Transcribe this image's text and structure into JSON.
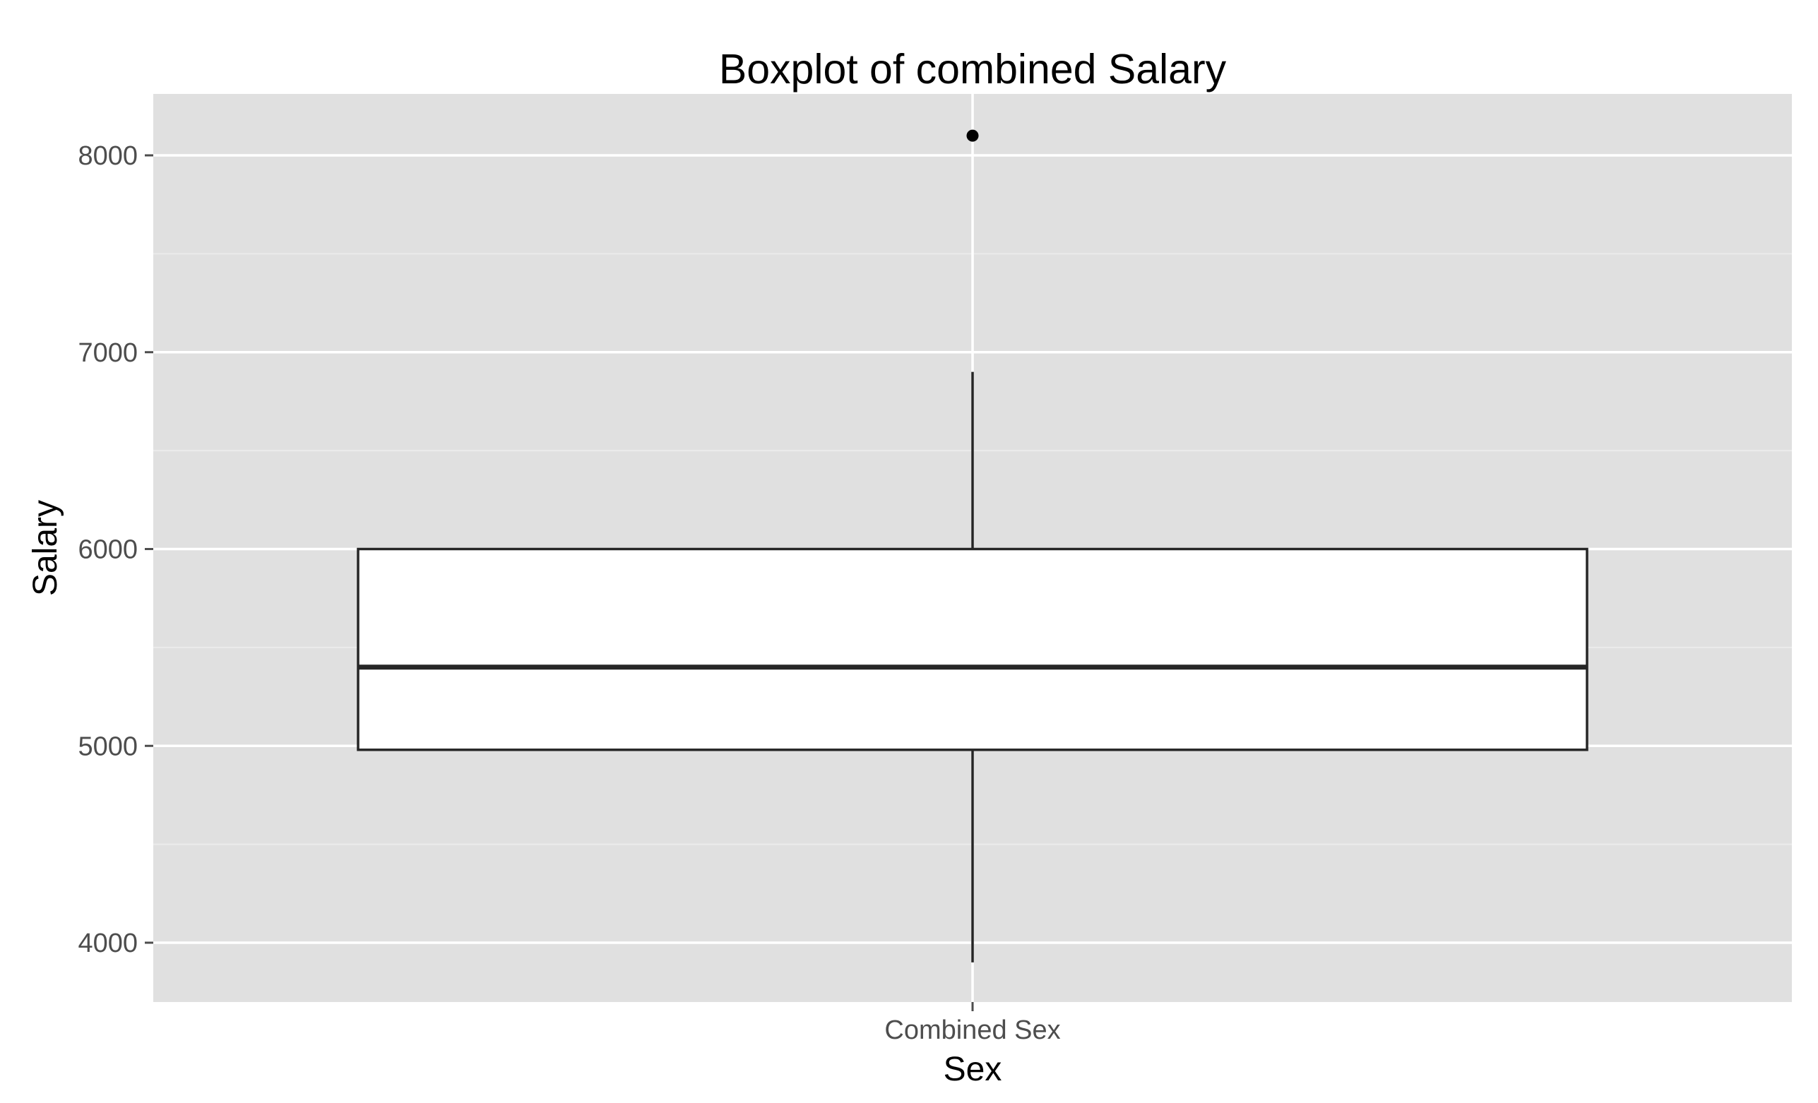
{
  "chart_data": {
    "type": "boxplot",
    "title": "Boxplot of combined Salary",
    "xlabel": "Sex",
    "ylabel": "Salary",
    "categories": [
      "Combined Sex"
    ],
    "ylim": [
      3700,
      8300
    ],
    "y_major_ticks": [
      4000,
      5000,
      6000,
      7000,
      8000
    ],
    "y_minor_ticks": [
      4500,
      5500,
      6500,
      7500
    ],
    "y_tick_labels": [
      "4000",
      "5000",
      "6000",
      "7000",
      "8000"
    ],
    "boxes": [
      {
        "category": "Combined Sex",
        "whisker_low": 3900,
        "q1": 4980,
        "median": 5400,
        "q3": 6000,
        "whisker_high": 6900,
        "outliers": [
          8100
        ]
      }
    ],
    "grid": true,
    "legend": "none"
  },
  "colors": {
    "panel_background": "#e0e0e0",
    "major_grid": "#ffffff",
    "minor_grid": "#ebebeb",
    "box_fill": "#ffffff",
    "box_stroke": "#262626",
    "tick_label": "#4d4d4d",
    "text": "#000000"
  }
}
